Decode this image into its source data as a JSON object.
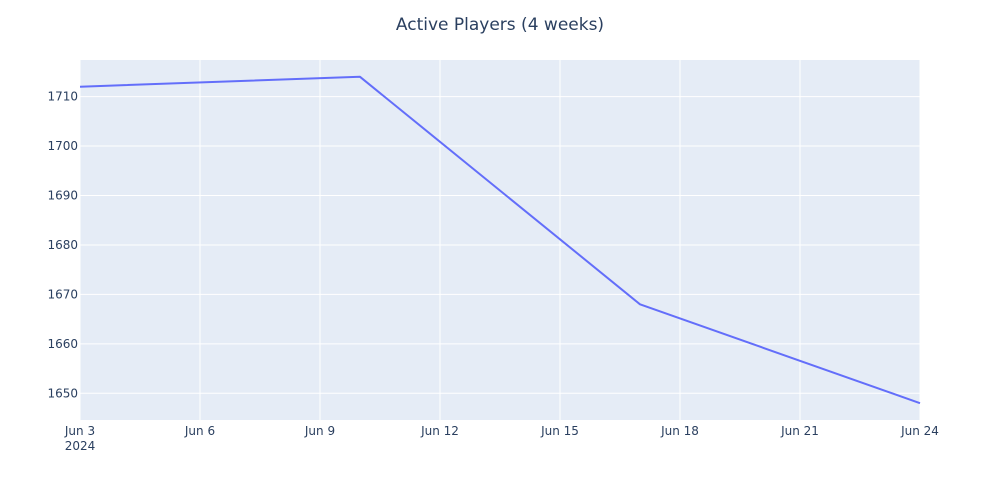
{
  "chart_data": {
    "type": "line",
    "title": "Active Players (4 weeks)",
    "xlabel": "",
    "ylabel": "",
    "x": [
      "2024-06-03",
      "2024-06-10",
      "2024-06-17",
      "2024-06-24"
    ],
    "series": [
      {
        "values": [
          1712,
          1714,
          1668,
          1648
        ]
      }
    ],
    "x_ticks": [
      "Jun 3",
      "Jun 6",
      "Jun 9",
      "Jun 12",
      "Jun 15",
      "Jun 18",
      "Jun 21",
      "Jun 24"
    ],
    "x_tick_dates": [
      "2024-06-03",
      "2024-06-06",
      "2024-06-09",
      "2024-06-12",
      "2024-06-15",
      "2024-06-18",
      "2024-06-21",
      "2024-06-24"
    ],
    "x_year_label": "2024",
    "y_ticks": [
      1650,
      1660,
      1670,
      1680,
      1690,
      1700,
      1710
    ],
    "xlim": [
      "2024-06-03",
      "2024-06-24"
    ],
    "ylim": [
      1644.6,
      1717.4
    ],
    "grid": true,
    "colors": {
      "plot_bg": "#e5ecf6",
      "line": "#636efa",
      "text": "#2a3f5f",
      "grid": "#ffffff"
    }
  }
}
